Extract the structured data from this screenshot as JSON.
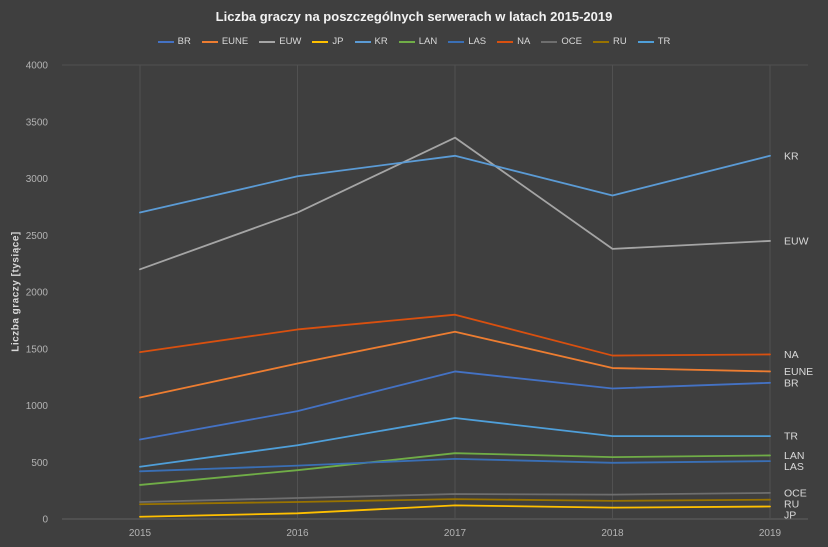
{
  "chart_data": {
    "type": "line",
    "title": "Liczba graczy na poszczególnych serwerach w latach 2015-2019",
    "ylabel": "Liczba graczy [tysiące]",
    "xlabel": "",
    "categories": [
      "2015",
      "2016",
      "2017",
      "2018",
      "2019"
    ],
    "ylim": [
      0,
      4000
    ],
    "y_ticks": [
      0,
      500,
      1000,
      1500,
      2000,
      2500,
      3000,
      3500,
      4000
    ],
    "grid": "vertical-only",
    "legend_position": "top",
    "series": [
      {
        "name": "BR",
        "color": "#4472c4",
        "values": [
          700,
          950,
          1300,
          1150,
          1200
        ]
      },
      {
        "name": "EUNE",
        "color": "#ed7d31",
        "values": [
          1070,
          1370,
          1650,
          1330,
          1300
        ]
      },
      {
        "name": "EUW",
        "color": "#a5a5a5",
        "values": [
          2200,
          2700,
          3360,
          2380,
          2450
        ]
      },
      {
        "name": "JP",
        "color": "#ffc000",
        "values": [
          20,
          50,
          120,
          100,
          110
        ]
      },
      {
        "name": "KR",
        "color": "#5b9bd5",
        "values": [
          2700,
          3020,
          3200,
          2850,
          3200
        ]
      },
      {
        "name": "LAN",
        "color": "#70ad47",
        "values": [
          300,
          430,
          580,
          545,
          560
        ]
      },
      {
        "name": "LAS",
        "color": "#3a6fb5",
        "values": [
          420,
          470,
          530,
          495,
          510
        ]
      },
      {
        "name": "NA",
        "color": "#d9500f",
        "values": [
          1470,
          1670,
          1800,
          1440,
          1450
        ]
      },
      {
        "name": "OCE",
        "color": "#6e6e6e",
        "values": [
          150,
          185,
          220,
          215,
          230
        ]
      },
      {
        "name": "RU",
        "color": "#997300",
        "values": [
          130,
          150,
          175,
          160,
          170
        ]
      },
      {
        "name": "TR",
        "color": "#4f9fd9",
        "values": [
          460,
          650,
          890,
          730,
          730
        ]
      }
    ]
  },
  "colors": {
    "background": "#3f3f3f",
    "gridline": "#515151",
    "axis_line": "#606060",
    "tick_text": "#b3b3b3",
    "title_text": "#f2f2f2",
    "legend_text": "#d9d9d9",
    "series_label_text": "#d9d9d9"
  }
}
